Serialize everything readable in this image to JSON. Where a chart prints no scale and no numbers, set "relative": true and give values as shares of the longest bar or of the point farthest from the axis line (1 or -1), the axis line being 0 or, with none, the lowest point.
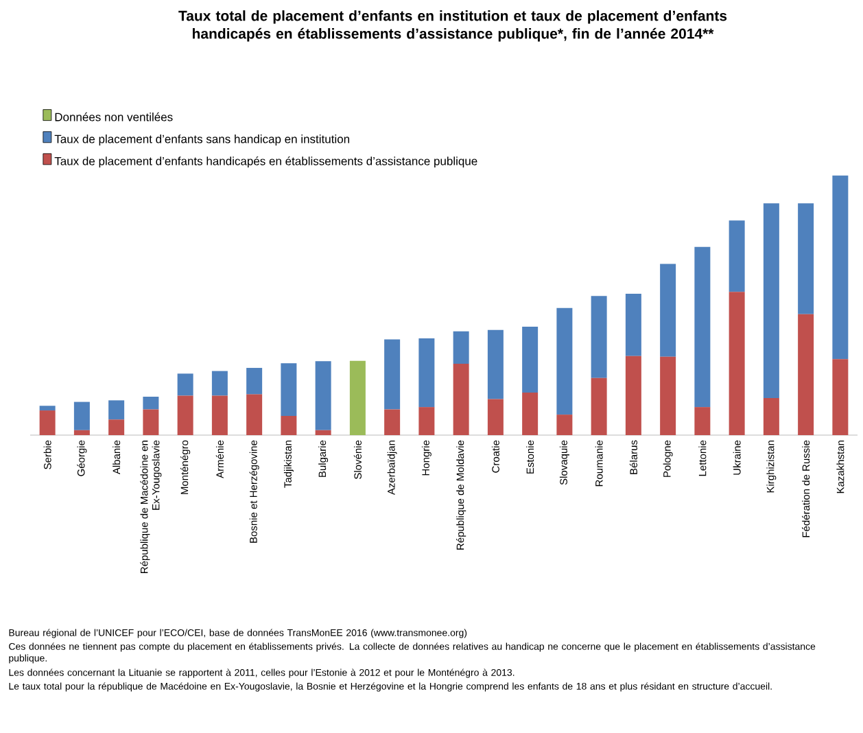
{
  "chart_data": {
    "type": "bar",
    "title": "Taux total de placement d’enfants en institution et taux de placement d’enfants handicapés en établissements d’assistance publique*, fin de l’année 2014**",
    "categories": [
      "Serbie",
      "Géorgie",
      "Albanie",
      "République de Macédoine en Ex-Yougoslavie",
      "Monténégro",
      "Arménie",
      "Bosnie et Herzégovine",
      "Tadjikistan",
      "Bulgarie",
      "Slovénie",
      "Azerbaïdjan",
      "Hongrie",
      "République de  Moldavie",
      "Croatie",
      "Estonie",
      "Slovaquie",
      "Roumanie",
      "Bélarus",
      "Pologne",
      "Lettonie",
      "Ukraine",
      "Kirghizistan",
      "Fédération de Russie",
      "Kazakhstan"
    ],
    "relative": true,
    "stacked": true,
    "legend": "top left",
    "series": [
      {
        "name": "Taux de placement d’enfants handicapés en établissements d’assistance publique",
        "color": "#c0504d",
        "values": [
          0.095,
          0.019,
          0.06,
          0.099,
          0.152,
          0.152,
          0.157,
          0.074,
          0.019,
          null,
          0.099,
          0.108,
          0.275,
          0.139,
          0.164,
          0.079,
          0.22,
          0.305,
          0.302,
          0.108,
          0.552,
          0.143,
          0.466,
          0.293
        ]
      },
      {
        "name": "Taux de placement d’enfants sans handicap en institution",
        "color": "#4f81bd",
        "values": [
          0.018,
          0.109,
          0.074,
          0.049,
          0.085,
          0.095,
          0.102,
          0.203,
          0.266,
          null,
          0.27,
          0.265,
          0.125,
          0.266,
          0.254,
          0.411,
          0.316,
          0.24,
          0.358,
          0.617,
          0.275,
          0.75,
          0.427,
          0.707
        ]
      },
      {
        "name": "Données non ventilées",
        "color": "#9bbb59",
        "values": [
          null,
          null,
          null,
          null,
          null,
          null,
          null,
          null,
          null,
          0.286,
          null,
          null,
          null,
          null,
          null,
          null,
          null,
          null,
          null,
          null,
          null,
          null,
          null,
          null
        ]
      }
    ],
    "annotations": [
      "Bureau régional de l’UNICEF pour l’ECO/CEI, base de données TransMonEE 2016 (www.transmonee.org)",
      "Ces données ne tiennent pas compte du placement en établissements privés. La collecte de données relatives au handicap ne concerne que le placement en établissements d’assistance publique.",
      "Les données concernant la Lituanie se rapportent à 2011, celles pour l’Estonie à 2012 et pour le Monténégro à 2013.",
      "Le taux total pour la république de Macédoine en Ex-Yougoslavie, la Bosnie et Herzégovine et la Hongrie comprend les enfants de 18 ans et plus résidant en structure d’accueil."
    ]
  }
}
